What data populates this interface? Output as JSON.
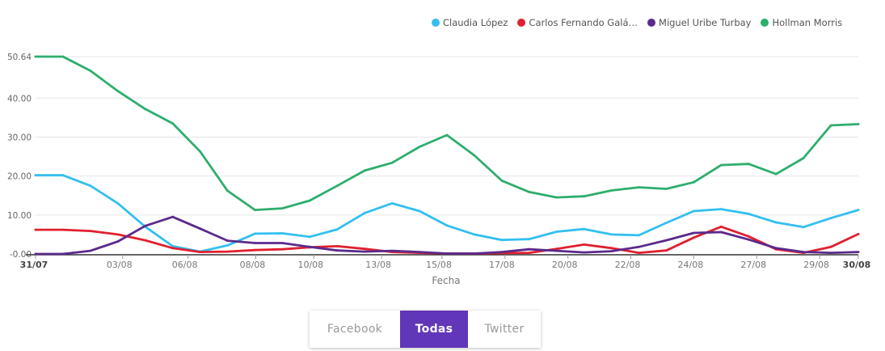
{
  "chart_data": {
    "type": "line",
    "xlabel": "Fecha",
    "ylabel": "",
    "ylim": [
      0,
      50.64
    ],
    "y_ticks": [
      "50.64",
      "40.00",
      "30.00",
      "20.00",
      "10.00",
      "-0.00"
    ],
    "y_tick_values": [
      50.64,
      40,
      30,
      20,
      10,
      0
    ],
    "x_ticks": [
      "31/07",
      "03/08",
      "06/08",
      "08/08",
      "10/08",
      "13/08",
      "15/08",
      "17/08",
      "20/08",
      "22/08",
      "24/08",
      "27/08",
      "29/08",
      "30/08"
    ],
    "x_tick_index": [
      0,
      3.6,
      6.3,
      9.1,
      11.5,
      14.3,
      16.8,
      19.4,
      22.0,
      24.6,
      27.2,
      29.8,
      32.4,
      34.0
    ],
    "grid": true,
    "legend_position": "top-right",
    "series": [
      {
        "name": "Claudia López",
        "color": "#33bff0",
        "values": [
          20.2,
          20.2,
          17.5,
          13,
          7,
          2,
          0.6,
          2.2,
          5.2,
          5.3,
          4.4,
          6.3,
          10.5,
          13,
          11,
          7.3,
          5,
          3.6,
          3.8,
          5.7,
          6.4,
          5,
          4.8,
          8,
          11,
          11.5,
          10.3,
          8.1,
          6.9,
          9.2,
          11.3
        ]
      },
      {
        "name": "Carlos Fernando Galán",
        "color": "#e02030",
        "values": [
          6.2,
          6.2,
          5.9,
          5,
          3.5,
          1.5,
          0.5,
          0.6,
          1,
          1.2,
          1.7,
          2,
          1.3,
          0.5,
          0.3,
          0.1,
          0.1,
          0.2,
          0.3,
          1.3,
          2.4,
          1.5,
          0.3,
          0.9,
          4.2,
          7,
          4.5,
          1.2,
          0.3,
          1.8,
          5.1
        ]
      },
      {
        "name": "Miguel Uribe Turbay",
        "color": "#5b2a8c",
        "values": [
          0,
          0,
          0.8,
          3.2,
          7.2,
          9.5,
          6.5,
          3.4,
          2.8,
          2.8,
          1.8,
          0.9,
          0.6,
          0.8,
          0.5,
          0.1,
          0.1,
          0.5,
          1.2,
          0.8,
          0.4,
          0.7,
          1.8,
          3.5,
          5.4,
          5.6,
          3.7,
          1.5,
          0.5,
          0.3,
          0.5
        ]
      },
      {
        "name": "Hollman Morris",
        "color": "#2eae6c",
        "values": [
          50.64,
          50.64,
          47,
          41.8,
          37.2,
          33.5,
          26.3,
          16.2,
          11.3,
          11.7,
          13.7,
          17.5,
          21.4,
          23.4,
          27.5,
          30.5,
          25.3,
          18.8,
          15.9,
          14.5,
          14.8,
          16.3,
          17.1,
          16.7,
          18.4,
          22.8,
          23.1,
          20.5,
          24.6,
          33,
          33.3
        ]
      }
    ]
  },
  "legend": {
    "items": [
      {
        "label": "Claudia López",
        "color": "#33bff0"
      },
      {
        "label": "Carlos Fernando Galá…",
        "color": "#e02030"
      },
      {
        "label": "Miguel Uribe Turbay",
        "color": "#5b2a8c"
      },
      {
        "label": "Hollman Morris",
        "color": "#2eae6c"
      }
    ]
  },
  "toggle": {
    "facebook": "Facebook",
    "todas": "Todas",
    "twitter": "Twitter",
    "active": "todas",
    "active_color": "#6236b8"
  }
}
